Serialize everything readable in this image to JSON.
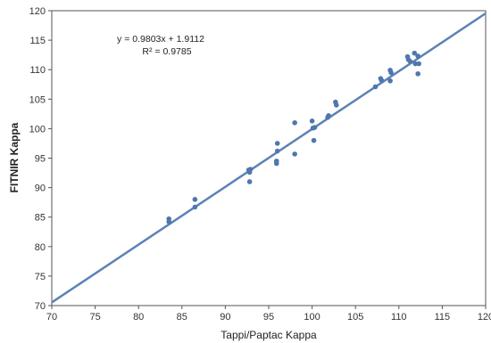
{
  "chart_data": {
    "type": "scatter",
    "title": "",
    "xlabel": "Tappi/Paptac Kappa",
    "ylabel": "FITNIR Kappa",
    "xlim": [
      70,
      120
    ],
    "ylim": [
      70,
      120
    ],
    "xticks": [
      70,
      75,
      80,
      85,
      90,
      95,
      100,
      105,
      110,
      115,
      120
    ],
    "yticks": [
      70,
      75,
      80,
      85,
      90,
      95,
      100,
      105,
      110,
      115,
      120
    ],
    "grid": false,
    "legend": "none",
    "equation_text": "y = 0.9803x + 1.9112",
    "r2_text": "R² = 0.9785",
    "trendline": {
      "slope": 0.9803,
      "intercept": 1.9112,
      "x_range": [
        70,
        120
      ]
    },
    "marker_color": "#4f77ad",
    "line_color": "#5b82b5",
    "points": [
      {
        "x": 83.5,
        "y": 84.7
      },
      {
        "x": 83.5,
        "y": 84.2
      },
      {
        "x": 86.5,
        "y": 88.0
      },
      {
        "x": 86.5,
        "y": 86.7
      },
      {
        "x": 92.7,
        "y": 93.0
      },
      {
        "x": 92.8,
        "y": 92.6
      },
      {
        "x": 92.9,
        "y": 93.1
      },
      {
        "x": 92.8,
        "y": 91.0
      },
      {
        "x": 96.0,
        "y": 97.5
      },
      {
        "x": 96.0,
        "y": 96.2
      },
      {
        "x": 95.9,
        "y": 94.5
      },
      {
        "x": 95.9,
        "y": 94.1
      },
      {
        "x": 98.0,
        "y": 101.0
      },
      {
        "x": 98.0,
        "y": 95.7
      },
      {
        "x": 100.0,
        "y": 101.3
      },
      {
        "x": 100.1,
        "y": 100.1
      },
      {
        "x": 100.3,
        "y": 100.2
      },
      {
        "x": 100.2,
        "y": 98.0
      },
      {
        "x": 101.8,
        "y": 101.9
      },
      {
        "x": 101.9,
        "y": 102.2
      },
      {
        "x": 102.7,
        "y": 104.5
      },
      {
        "x": 102.8,
        "y": 104.0
      },
      {
        "x": 107.3,
        "y": 107.1
      },
      {
        "x": 107.9,
        "y": 108.5
      },
      {
        "x": 108.0,
        "y": 108.2
      },
      {
        "x": 109.0,
        "y": 109.9
      },
      {
        "x": 109.1,
        "y": 109.5
      },
      {
        "x": 109.0,
        "y": 108.1
      },
      {
        "x": 111.0,
        "y": 112.2
      },
      {
        "x": 111.1,
        "y": 111.7
      },
      {
        "x": 111.3,
        "y": 111.4
      },
      {
        "x": 111.8,
        "y": 112.8
      },
      {
        "x": 111.9,
        "y": 111.0
      },
      {
        "x": 112.2,
        "y": 112.3
      },
      {
        "x": 112.3,
        "y": 111.0
      },
      {
        "x": 112.2,
        "y": 109.3
      }
    ]
  }
}
